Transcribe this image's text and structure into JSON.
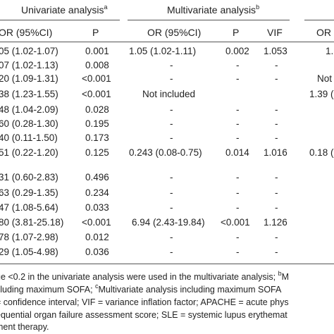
{
  "headers": {
    "univariate": "Univariate analysis",
    "univariate_sup": "a",
    "multivariate": "Multivariate analysis",
    "multivariate_sup": "b"
  },
  "columns": {
    "uni_or": "OR (95%CI)",
    "uni_p": "P",
    "multi_or": "OR (95%CI)",
    "multi_p": "P",
    "multi_vif": "VIF",
    "multi2_or": "OR"
  },
  "rows": [
    {
      "uni_or": "05 (1.02-1.07)",
      "uni_p": "0.001",
      "mv_or": "1.05 (1.02-1.11)",
      "mv_p": "0.002",
      "vif": "1.053",
      "c2": "1."
    },
    {
      "uni_or": "07 (1.02-1.13)",
      "uni_p": "0.008",
      "mv_or": "-",
      "mv_p": "-",
      "vif": "-",
      "c2": ""
    },
    {
      "uni_or": "20 (1.09-1.31)",
      "uni_p": "<0.001",
      "mv_or": "-",
      "mv_p": "-",
      "vif": "-",
      "c2": "Not"
    },
    {
      "uni_or": "38 (1.23-1.55)",
      "uni_p": "<0.001",
      "mv_or": "Not included",
      "mv_p": "",
      "vif": "",
      "c2": "1.39 ("
    },
    {
      "uni_or": "48 (1.04-2.09)",
      "uni_p": "0.028",
      "mv_or": "-",
      "mv_p": "-",
      "vif": "-",
      "c2": ""
    },
    {
      "uni_or": "60 (0.28-1.30)",
      "uni_p": "0.195",
      "mv_or": "-",
      "mv_p": "-",
      "vif": "-",
      "c2": ""
    },
    {
      "uni_or": "40 (0.11-1.50)",
      "uni_p": "0.173",
      "mv_or": "-",
      "mv_p": "-",
      "vif": "-",
      "c2": ""
    },
    {
      "uni_or": "51 (0.22-1.20)",
      "uni_p": "0.125",
      "mv_or": "0.243 (0.08-0.75)",
      "mv_p": "0.014",
      "vif": "1.016",
      "c2": "0.18 ("
    },
    {
      "uni_or": "31 (0.60-2.83)",
      "uni_p": "0.496",
      "mv_or": "-",
      "mv_p": "-",
      "vif": "-",
      "c2": ""
    },
    {
      "uni_or": "63 (0.29-1.35)",
      "uni_p": "0.234",
      "mv_or": "-",
      "mv_p": "-",
      "vif": "-",
      "c2": ""
    },
    {
      "uni_or": "47 (1.08-5.64)",
      "uni_p": "0.033",
      "mv_or": "-",
      "mv_p": "-",
      "vif": "-",
      "c2": ""
    },
    {
      "uni_or": "80 (3.81-25.18)",
      "uni_p": "<0.001",
      "mv_or": "6.94 (2.43-19.84)",
      "mv_p": "<0.001",
      "vif": "1.126",
      "c2": ""
    },
    {
      "uni_or": "78 (1.07-2.98)",
      "uni_p": "0.012",
      "mv_or": "-",
      "mv_p": "-",
      "vif": "-",
      "c2": ""
    },
    {
      "uni_or": "29 (1.05-4.98)",
      "uni_p": "0.036",
      "mv_or": "-",
      "mv_p": "-",
      "vif": "-",
      "c2": ""
    }
  ],
  "footnotes": {
    "line1_a": "ue <0.2 in the univariate analysis were used in the multivariate analysis; ",
    "line1_sup": "b",
    "line1_b": "M",
    "line2_a": "cluding maximum SOFA; ",
    "line2_sup": "c",
    "line2_b": "Multivariate analysis including maximum SOFA",
    "line3": "= confidence interval; VIF = variance inflation factor; APACHE = acute phys",
    "line4": "equential organ failure assessment score; SLE = systemic lupus erythemat",
    "line5": "ment therapy."
  }
}
